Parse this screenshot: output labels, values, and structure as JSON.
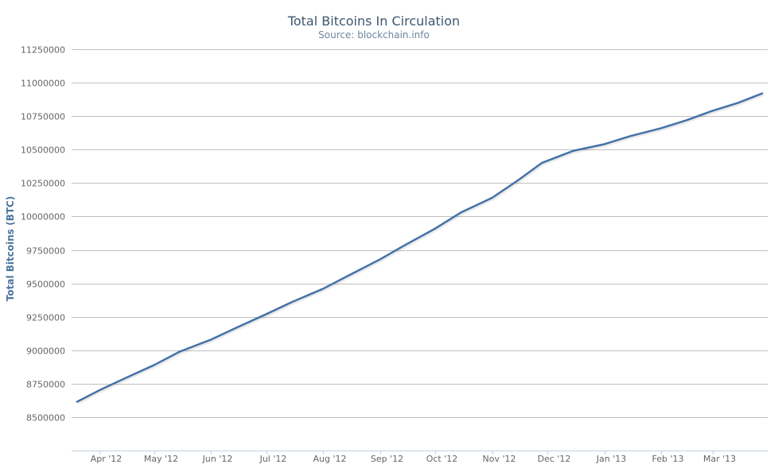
{
  "chart_data": {
    "type": "line",
    "title": "Total Bitcoins In Circulation",
    "subtitle": "Source: blockchain.info",
    "xlabel": "",
    "ylabel": "Total Bitcoins (BTC)",
    "ylim": [
      8250000,
      11250000
    ],
    "yticks": [
      8500000,
      8750000,
      9000000,
      9250000,
      9500000,
      9750000,
      10000000,
      10250000,
      10500000,
      10750000,
      11000000,
      11250000
    ],
    "ytick_labels": [
      "8500000",
      "8750000",
      "9000000",
      "9250000",
      "9500000",
      "9750000",
      "10000000",
      "10250000",
      "10500000",
      "10750000",
      "11000000",
      "11250000"
    ],
    "xlim": [
      "2012-03-17",
      "2013-03-31"
    ],
    "xticks": [
      "2012-04-01",
      "2012-05-01",
      "2012-06-01",
      "2012-07-01",
      "2012-08-01",
      "2012-09-01",
      "2012-10-01",
      "2012-11-01",
      "2012-12-01",
      "2013-01-01",
      "2013-02-01",
      "2013-03-01"
    ],
    "xtick_labels": [
      "Apr '12",
      "May '12",
      "Jun '12",
      "Jul '12",
      "Aug '12",
      "Sep '12",
      "Oct '12",
      "Nov '12",
      "Dec '12",
      "Jan '13",
      "Feb '13",
      "Mar '13"
    ],
    "grid": true,
    "legend": "none",
    "series": [
      {
        "color": "#4572a7",
        "x": [
          "2012-03-20",
          "2012-04-01",
          "2012-04-15",
          "2012-05-01",
          "2012-05-15",
          "2012-06-01",
          "2012-06-15",
          "2012-07-01",
          "2012-07-15",
          "2012-08-01",
          "2012-08-15",
          "2012-09-01",
          "2012-09-15",
          "2012-10-01",
          "2012-10-15",
          "2012-11-01",
          "2012-11-15",
          "2012-11-28",
          "2012-12-15",
          "2013-01-01",
          "2013-01-15",
          "2013-02-01",
          "2013-02-15",
          "2013-03-01",
          "2013-03-15",
          "2013-03-28"
        ],
        "values": [
          8615000,
          8700000,
          8790000,
          8890000,
          8990000,
          9080000,
          9170000,
          9270000,
          9360000,
          9460000,
          9560000,
          9680000,
          9790000,
          9910000,
          10030000,
          10140000,
          10270000,
          10400000,
          10490000,
          10540000,
          10600000,
          10660000,
          10720000,
          10790000,
          10850000,
          10920000
        ]
      }
    ]
  }
}
